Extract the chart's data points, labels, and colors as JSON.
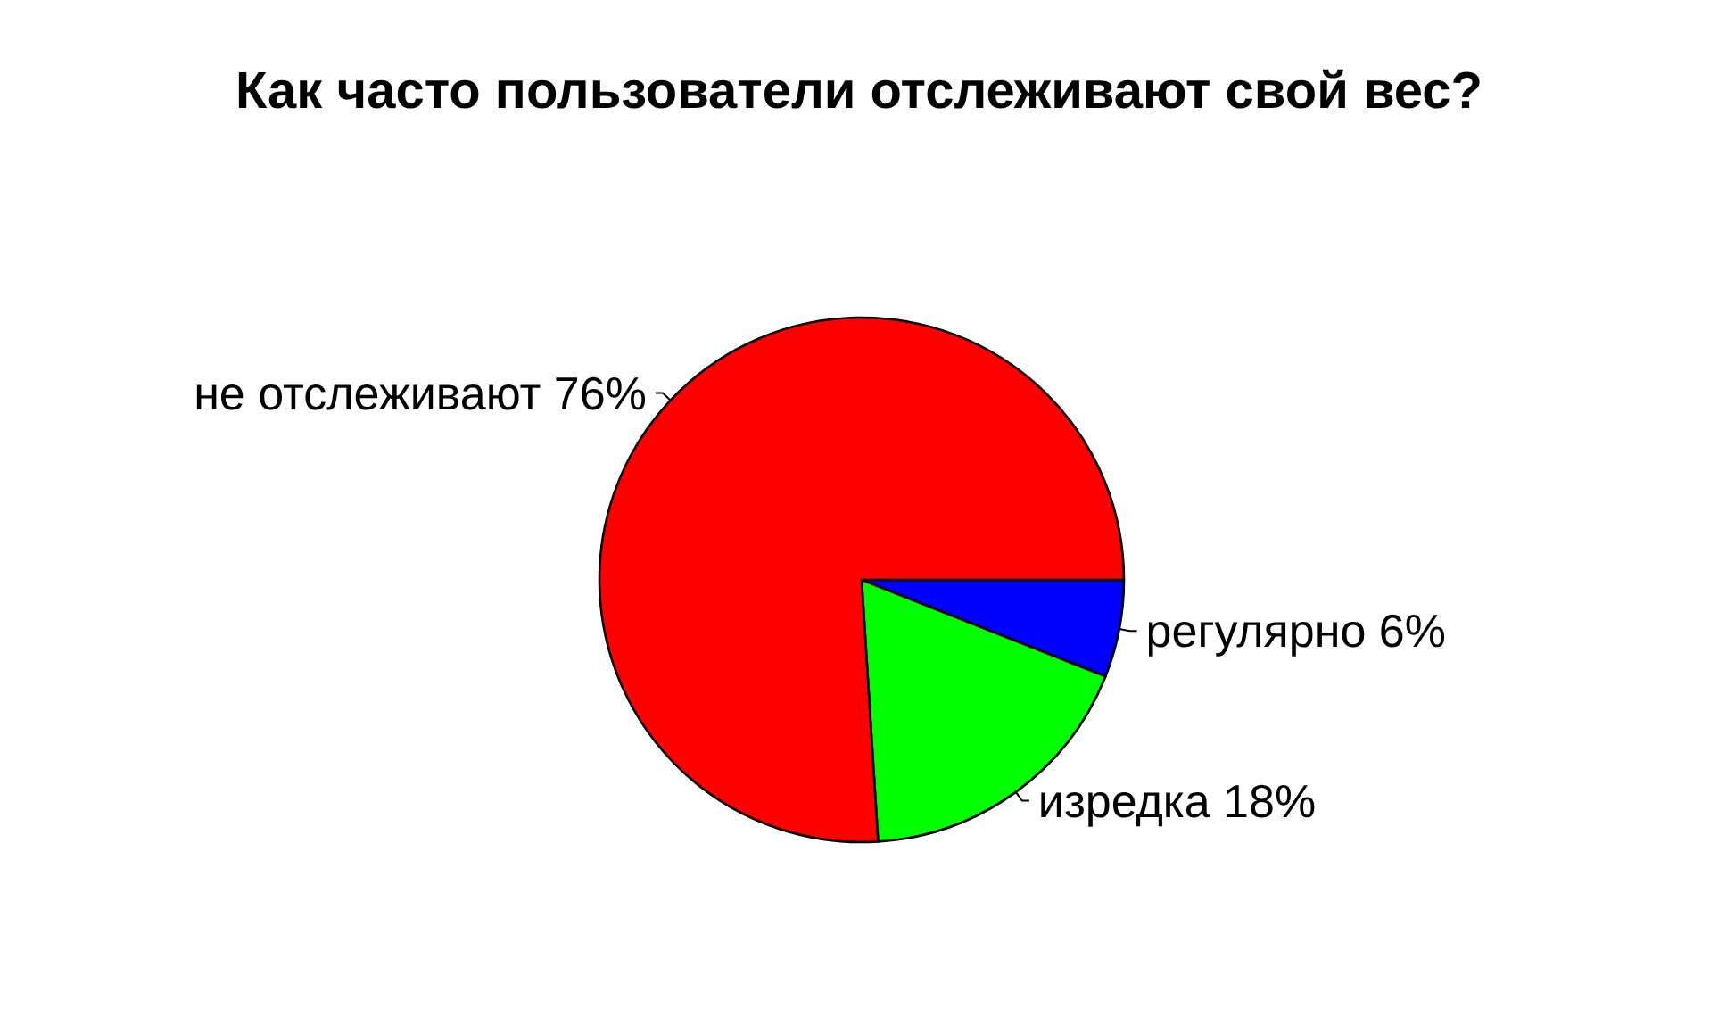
{
  "chart_data": {
    "type": "pie",
    "title": "Как часто пользователи отслеживают свой вес?",
    "categories": [
      "регулярно",
      "изредка",
      "не отслеживают"
    ],
    "values": [
      6,
      18,
      76
    ],
    "colors": [
      "#0000ff",
      "#00ff00",
      "#ff0000"
    ],
    "value_labels": [
      "6%",
      "18%",
      "76%"
    ],
    "legend": false
  }
}
